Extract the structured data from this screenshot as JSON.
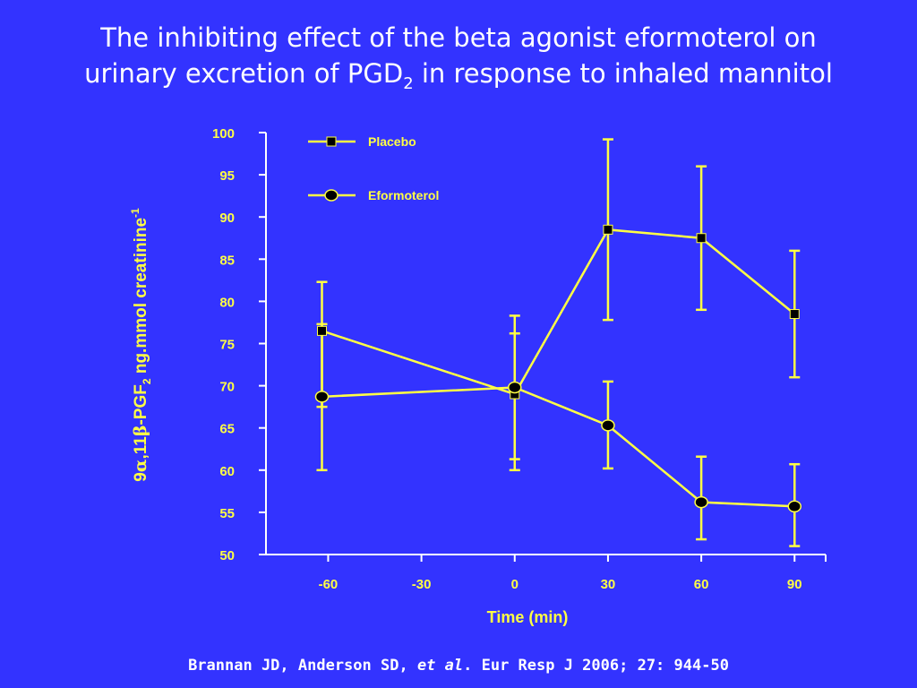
{
  "slide": {
    "title_line1": "The inhibiting effect of the beta agonist eformoterol on",
    "title_line2_pre": "urinary excretion of PGD",
    "title_line2_sub": "2",
    "title_line2_post": " in response to inhaled mannitol",
    "citation_authors": "Brannan JD, Anderson SD, ",
    "citation_etal": "et al",
    "citation_rest": ".  Eur Resp J 2006; 27: 944-50"
  },
  "colors": {
    "background": "#3333ff",
    "axis": "#ffffff",
    "series_line": "#ffff44",
    "tick_label": "#ffff44",
    "marker_fill": "#000000",
    "title_text": "#ffffff"
  },
  "chart_data": {
    "type": "line",
    "xlabel": "Time (min)",
    "ylabel": {
      "part1": "9",
      "part2": "α",
      "part3": ",11",
      "part4": "β",
      "part5": "-PGF",
      "part6_sub": "2",
      "part7": " ng.mmol creatinine",
      "part8_sup": "-1"
    },
    "xlim": [
      -80,
      100
    ],
    "ylim": [
      50,
      100
    ],
    "x_ticks": [
      -60,
      -30,
      0,
      30,
      60,
      90
    ],
    "x_tick_labels": [
      "-60",
      "-30",
      "0",
      "30",
      "60",
      "90"
    ],
    "y_ticks": [
      50,
      55,
      60,
      65,
      70,
      75,
      80,
      85,
      90,
      95,
      100
    ],
    "y_tick_labels": [
      "50",
      "55",
      "60",
      "65",
      "70",
      "75",
      "80",
      "85",
      "90",
      "95",
      "100"
    ],
    "legend_position": "top-left",
    "series": [
      {
        "name": "Placebo",
        "marker": "square",
        "points": [
          {
            "x": -62,
            "y": 76.5,
            "err_low": 67.5,
            "err_high": 82.3
          },
          {
            "x": 0,
            "y": 69,
            "err_low": 61.3,
            "err_high": 76.2
          },
          {
            "x": 30,
            "y": 88.5,
            "err_low": 77.8,
            "err_high": 99.2
          },
          {
            "x": 60,
            "y": 87.5,
            "err_low": 79,
            "err_high": 96
          },
          {
            "x": 90,
            "y": 78.5,
            "err_low": 71,
            "err_high": 86
          }
        ]
      },
      {
        "name": "Eformoterol",
        "marker": "circle",
        "points": [
          {
            "x": -62,
            "y": 68.7,
            "err_low": 60,
            "err_high": 77.3
          },
          {
            "x": 0,
            "y": 69.8,
            "err_low": 60,
            "err_high": 78.3
          },
          {
            "x": 30,
            "y": 65.3,
            "err_low": 60.2,
            "err_high": 70.5
          },
          {
            "x": 60,
            "y": 56.2,
            "err_low": 51.8,
            "err_high": 61.6
          },
          {
            "x": 90,
            "y": 55.7,
            "err_low": 51,
            "err_high": 60.7
          }
        ]
      }
    ]
  }
}
